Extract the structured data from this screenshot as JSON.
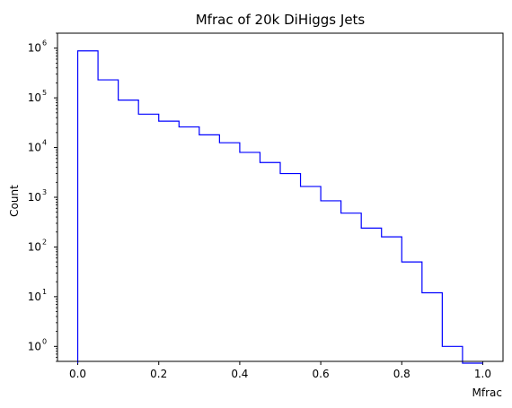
{
  "chart_data": {
    "type": "bar",
    "title": "Mfrac of 20k DiHiggs Jets",
    "xlabel": "Mfrac",
    "ylabel": "Count",
    "y_scale": "log",
    "histtype": "step",
    "color": "#0000ff",
    "xlim": [
      -0.05,
      1.05
    ],
    "ylim": [
      0.5,
      2000000
    ],
    "grid": false,
    "bin_edges": [
      0,
      0.05,
      0.1,
      0.15,
      0.2,
      0.25,
      0.3,
      0.35,
      0.4,
      0.45,
      0.5,
      0.55,
      0.6,
      0.65,
      0.7,
      0.75,
      0.8,
      0.85,
      0.9,
      0.95,
      1.0
    ],
    "counts": [
      880000,
      230000,
      90000,
      47000,
      34000,
      26000,
      18000,
      12500,
      8000,
      5000,
      3000,
      1650,
      850,
      480,
      240,
      160,
      50,
      12,
      1,
      0
    ],
    "x_ticks": [
      "0.0",
      "0.2",
      "0.4",
      "0.6",
      "0.8",
      "1.0"
    ],
    "x_tick_values": [
      0.0,
      0.2,
      0.4,
      0.6,
      0.8,
      1.0
    ],
    "y_ticks": [
      {
        "value": 1,
        "base": "10",
        "exp": "0"
      },
      {
        "value": 10,
        "base": "10",
        "exp": "1"
      },
      {
        "value": 100,
        "base": "10",
        "exp": "2"
      },
      {
        "value": 1000,
        "base": "10",
        "exp": "3"
      },
      {
        "value": 10000,
        "base": "10",
        "exp": "4"
      },
      {
        "value": 100000,
        "base": "10",
        "exp": "5"
      },
      {
        "value": 1000000,
        "base": "10",
        "exp": "6"
      }
    ]
  }
}
